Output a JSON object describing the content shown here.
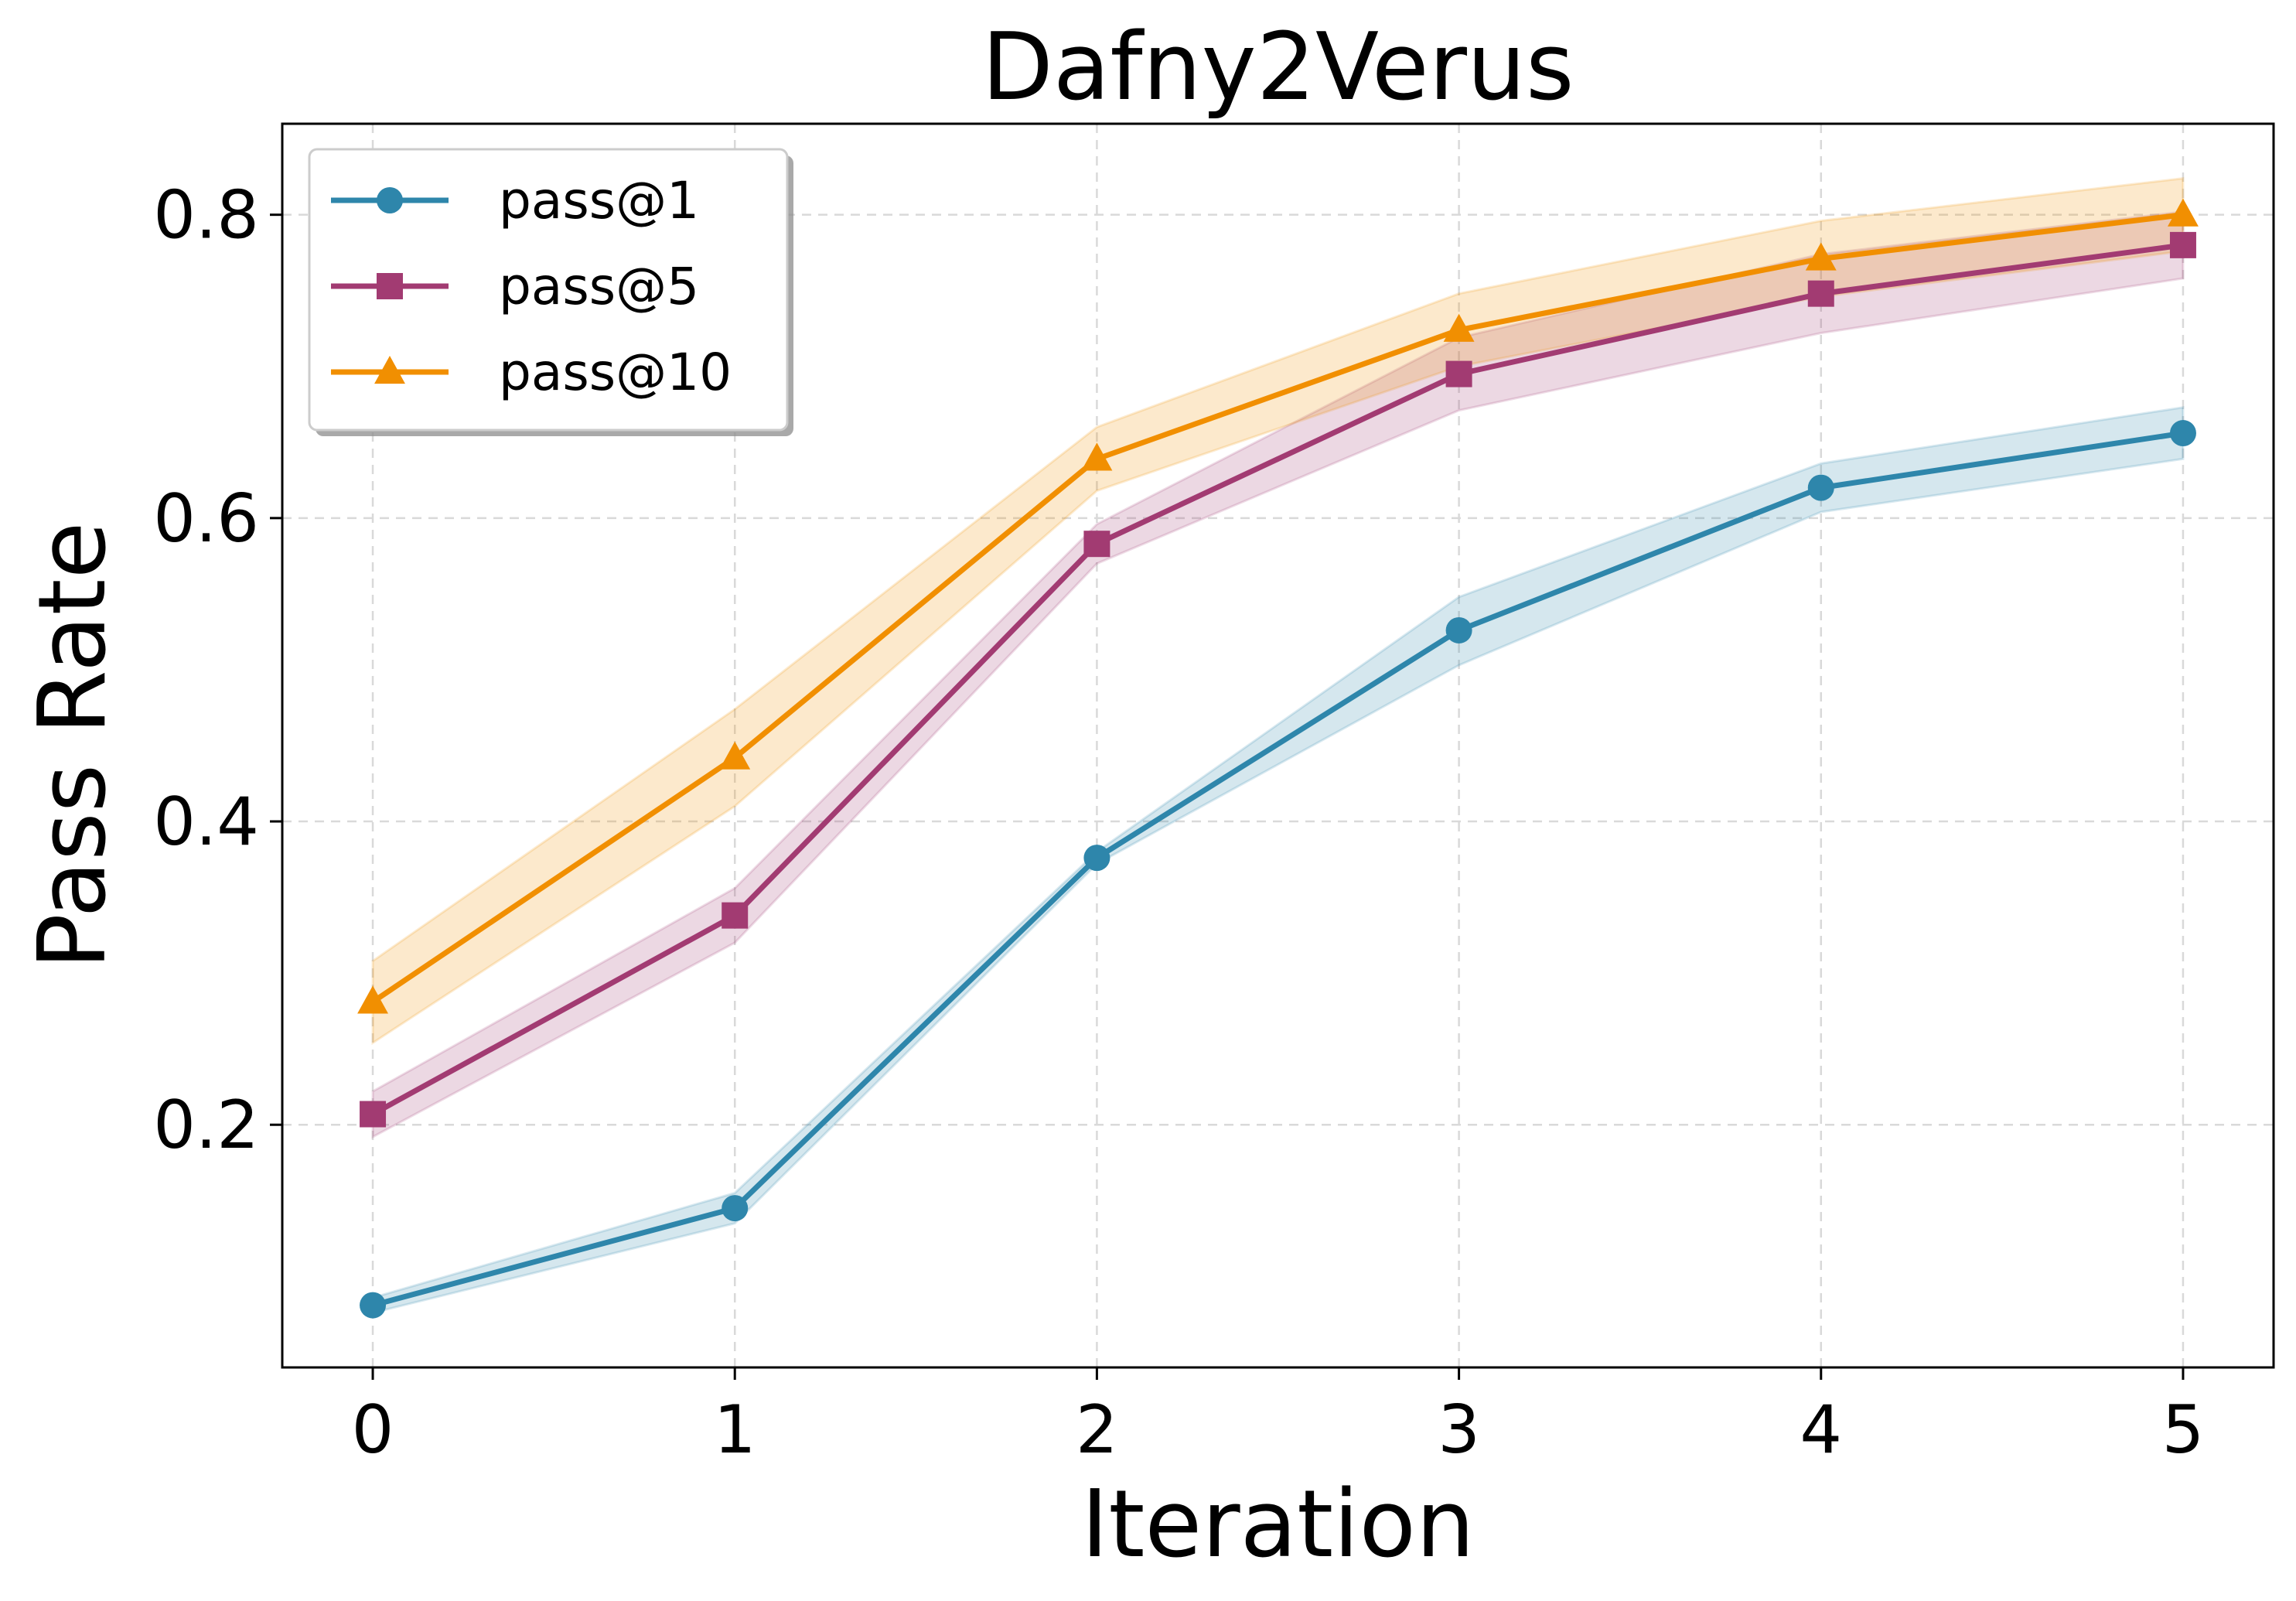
{
  "chart_data": {
    "type": "line",
    "title": "Dafny2Verus",
    "xlabel": "Iteration",
    "ylabel": "Pass Rate",
    "x": [
      0,
      1,
      2,
      3,
      4,
      5
    ],
    "xlim": [
      -0.25,
      5.25
    ],
    "ylim": [
      0.04,
      0.86
    ],
    "xticks": [
      0,
      1,
      2,
      3,
      4,
      5
    ],
    "yticks": [
      0.2,
      0.4,
      0.6,
      0.8
    ],
    "xtick_labels": [
      "0",
      "1",
      "2",
      "3",
      "4",
      "5"
    ],
    "ytick_labels": [
      "0.2",
      "0.4",
      "0.6",
      "0.8"
    ],
    "grid": true,
    "legend_position": "top-left",
    "series": [
      {
        "name": "pass@1",
        "color": "#2e86ab",
        "marker": "circle",
        "values": [
          0.081,
          0.145,
          0.376,
          0.526,
          0.62,
          0.656
        ],
        "lower": [
          0.076,
          0.135,
          0.372,
          0.503,
          0.604,
          0.639
        ],
        "upper": [
          0.086,
          0.155,
          0.38,
          0.548,
          0.636,
          0.673
        ]
      },
      {
        "name": "pass@5",
        "color": "#a23b72",
        "marker": "square",
        "values": [
          0.207,
          0.338,
          0.583,
          0.695,
          0.748,
          0.78
        ],
        "lower": [
          0.192,
          0.32,
          0.57,
          0.671,
          0.722,
          0.758
        ],
        "upper": [
          0.222,
          0.356,
          0.596,
          0.719,
          0.774,
          0.802
        ]
      },
      {
        "name": "pass@10",
        "color": "#f18f01",
        "marker": "triangle",
        "values": [
          0.281,
          0.442,
          0.639,
          0.724,
          0.771,
          0.8
        ],
        "lower": [
          0.254,
          0.41,
          0.618,
          0.7,
          0.746,
          0.776
        ],
        "upper": [
          0.308,
          0.474,
          0.66,
          0.748,
          0.796,
          0.824
        ]
      }
    ]
  }
}
